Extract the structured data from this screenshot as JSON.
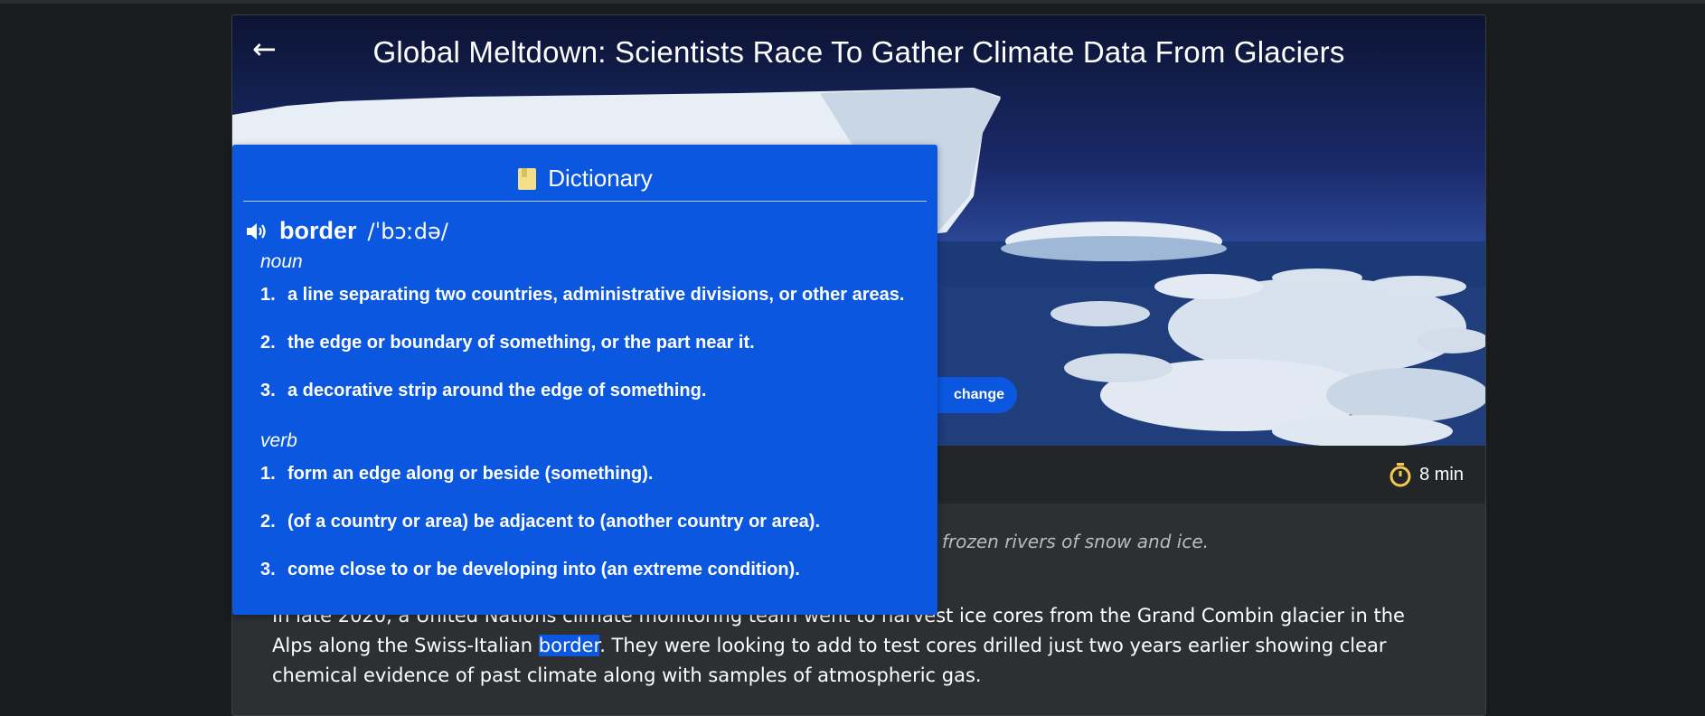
{
  "article": {
    "title": "Global Meltdown: Scientists Race To Gather Climate Data From Glaciers",
    "tag": "change",
    "read_time": "8 min",
    "subtitle": "frozen rivers of snow and ice.",
    "body_before": "In late 2020, a United Nations climate monitoring team went to harvest ice cores from the Grand Combin glacier in the Alps along the Swiss-Italian ",
    "body_highlight": "border",
    "body_after": ". They were looking to add to test cores drilled just two years earlier showing clear chemical evidence of past climate along with samples of atmospheric gas."
  },
  "dictionary": {
    "title": "Dictionary",
    "word": "border",
    "phonetic": "/ˈbɔːdə/",
    "entries": [
      {
        "pos": "noun",
        "definitions": [
          "a line separating two countries, administrative divisions, or other areas.",
          "the edge or boundary of something, or the part near it.",
          "a decorative strip around the edge of something."
        ]
      },
      {
        "pos": "verb",
        "definitions": [
          "form an edge along or beside (something).",
          "(of a country or area) be adjacent to (another country or area).",
          "come close to or be developing into (an extreme condition)."
        ]
      }
    ],
    "numbers": [
      "1.",
      "2.",
      "3."
    ]
  },
  "icons": {
    "back": "arrow-left-icon",
    "timer": "stopwatch-icon",
    "book": "book-icon",
    "speaker": "speaker-icon"
  },
  "colors": {
    "accent": "#0b57e0",
    "timer_icon": "#f2c94c",
    "book_icon": "#f3de8a"
  }
}
